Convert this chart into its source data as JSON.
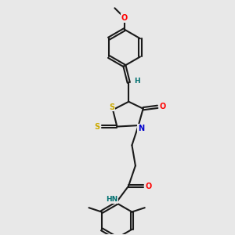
{
  "bg_color": "#e8e8e8",
  "bond_color": "#1a1a1a",
  "bond_width": 1.5,
  "atom_colors": {
    "O": "#ff0000",
    "S": "#ccaa00",
    "N": "#0000cc",
    "H_teal": "#007070",
    "C": "#1a1a1a"
  }
}
